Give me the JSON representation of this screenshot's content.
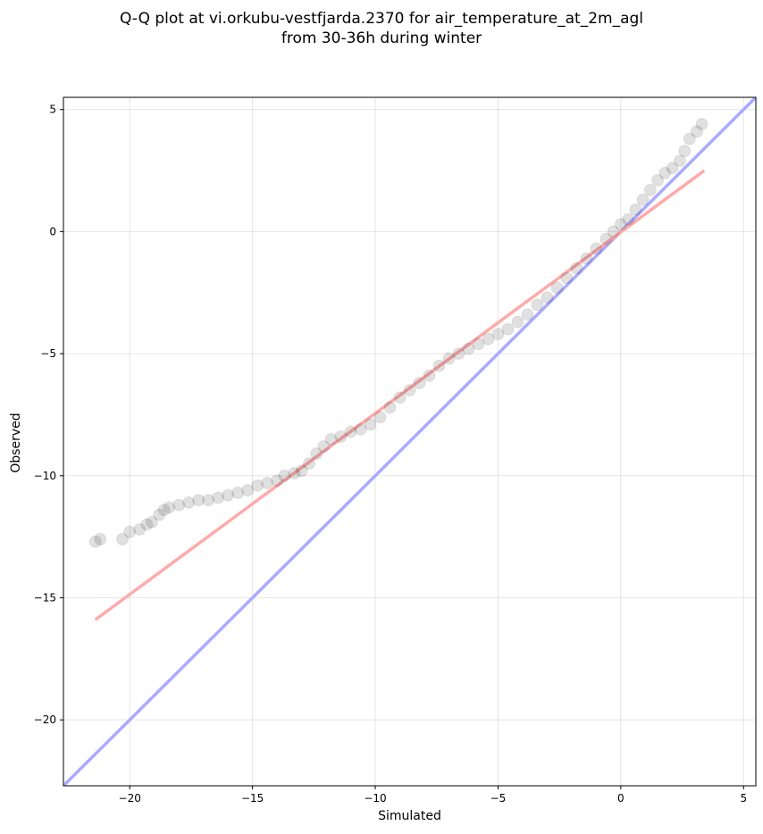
{
  "chart_data": {
    "type": "scatter",
    "title": "Q-Q plot at vi.orkubu-vestfjarda.2370 for air_temperature_at_2m_agl",
    "subtitle": "from 30-36h during winter",
    "xlabel": "Simulated",
    "ylabel": "Observed",
    "xlim": [
      -22.7,
      5.5
    ],
    "ylim": [
      -22.7,
      5.5
    ],
    "xticks": [
      -20,
      -15,
      -10,
      -5,
      0,
      5
    ],
    "yticks": [
      -20,
      -15,
      -10,
      -5,
      0,
      5
    ],
    "xtick_labels": [
      "−20",
      "−15",
      "−10",
      "−5",
      "0",
      "5"
    ],
    "ytick_labels": [
      "−20",
      "−15",
      "−10",
      "−5",
      "0",
      "5"
    ],
    "grid": true,
    "quantiles": [
      [
        -21.4,
        -12.7
      ],
      [
        -21.2,
        -12.6
      ],
      [
        -20.3,
        -12.6
      ],
      [
        -20.0,
        -12.3
      ],
      [
        -19.6,
        -12.2
      ],
      [
        -19.3,
        -12.0
      ],
      [
        -19.1,
        -11.9
      ],
      [
        -18.8,
        -11.6
      ],
      [
        -18.6,
        -11.4
      ],
      [
        -18.4,
        -11.3
      ],
      [
        -18.0,
        -11.2
      ],
      [
        -17.6,
        -11.1
      ],
      [
        -17.2,
        -11.0
      ],
      [
        -16.8,
        -11.0
      ],
      [
        -16.4,
        -10.9
      ],
      [
        -16.0,
        -10.8
      ],
      [
        -15.6,
        -10.7
      ],
      [
        -15.2,
        -10.6
      ],
      [
        -14.8,
        -10.4
      ],
      [
        -14.4,
        -10.3
      ],
      [
        -14.0,
        -10.2
      ],
      [
        -13.7,
        -10.0
      ],
      [
        -13.3,
        -9.9
      ],
      [
        -13.0,
        -9.8
      ],
      [
        -12.7,
        -9.5
      ],
      [
        -12.4,
        -9.1
      ],
      [
        -12.1,
        -8.8
      ],
      [
        -11.8,
        -8.5
      ],
      [
        -11.4,
        -8.4
      ],
      [
        -11.0,
        -8.2
      ],
      [
        -10.6,
        -8.1
      ],
      [
        -10.2,
        -7.9
      ],
      [
        -9.8,
        -7.6
      ],
      [
        -9.4,
        -7.2
      ],
      [
        -9.0,
        -6.8
      ],
      [
        -8.6,
        -6.5
      ],
      [
        -8.2,
        -6.2
      ],
      [
        -7.8,
        -5.9
      ],
      [
        -7.4,
        -5.5
      ],
      [
        -7.0,
        -5.2
      ],
      [
        -6.6,
        -5.0
      ],
      [
        -6.2,
        -4.8
      ],
      [
        -5.8,
        -4.6
      ],
      [
        -5.4,
        -4.4
      ],
      [
        -5.0,
        -4.2
      ],
      [
        -4.6,
        -4.0
      ],
      [
        -4.2,
        -3.7
      ],
      [
        -3.8,
        -3.4
      ],
      [
        -3.4,
        -3.0
      ],
      [
        -3.0,
        -2.7
      ],
      [
        -2.6,
        -2.3
      ],
      [
        -2.2,
        -1.9
      ],
      [
        -1.8,
        -1.5
      ],
      [
        -1.4,
        -1.1
      ],
      [
        -1.0,
        -0.7
      ],
      [
        -0.6,
        -0.3
      ],
      [
        -0.3,
        0.0
      ],
      [
        0.0,
        0.3
      ],
      [
        0.3,
        0.5
      ],
      [
        0.6,
        0.9
      ],
      [
        0.9,
        1.3
      ],
      [
        1.2,
        1.7
      ],
      [
        1.5,
        2.1
      ],
      [
        1.8,
        2.4
      ],
      [
        2.1,
        2.6
      ],
      [
        2.4,
        2.9
      ],
      [
        2.6,
        3.3
      ],
      [
        2.8,
        3.8
      ],
      [
        3.1,
        4.1
      ],
      [
        3.3,
        4.4
      ]
    ],
    "lines": [
      {
        "kind": "identity",
        "color": "#aaaaff",
        "x": [
          -22.7,
          5.5
        ],
        "y": [
          -22.7,
          5.5
        ]
      },
      {
        "kind": "fit",
        "color": "#ffaaaa",
        "x": [
          -21.4,
          3.4
        ],
        "y": [
          -15.9,
          2.5
        ]
      }
    ],
    "marker_color": "#000000"
  }
}
